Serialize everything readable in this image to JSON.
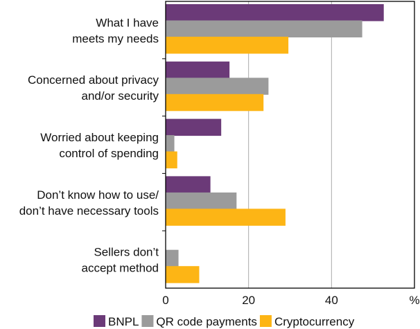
{
  "chart_data": {
    "type": "bar",
    "orientation": "horizontal",
    "categories": [
      [
        "What I have",
        "meets my needs"
      ],
      [
        "Concerned about privacy",
        "and/or security"
      ],
      [
        "Worried about keeping",
        "control of spending"
      ],
      [
        "Don’t know how to use/",
        "don’t have necessary tools"
      ],
      [
        "Sellers don’t",
        "accept method"
      ]
    ],
    "series": [
      {
        "name": "BNPL",
        "color": "#6b3a78",
        "values": [
          52.6,
          15.4,
          13.4,
          10.8,
          0
        ]
      },
      {
        "name": "QR code payments",
        "color": "#9b9b9b",
        "values": [
          47.4,
          24.8,
          2.1,
          17.1,
          3.1
        ]
      },
      {
        "name": "Cryptocurrency",
        "color": "#fdb515",
        "values": [
          29.6,
          23.6,
          2.8,
          28.9,
          8.1
        ]
      }
    ],
    "xlim": [
      0,
      60
    ],
    "xticks": [
      "0",
      "20",
      "40",
      "%"
    ],
    "xtick_values": [
      0,
      20,
      40,
      60
    ],
    "grid": true,
    "legend": "bottom"
  }
}
